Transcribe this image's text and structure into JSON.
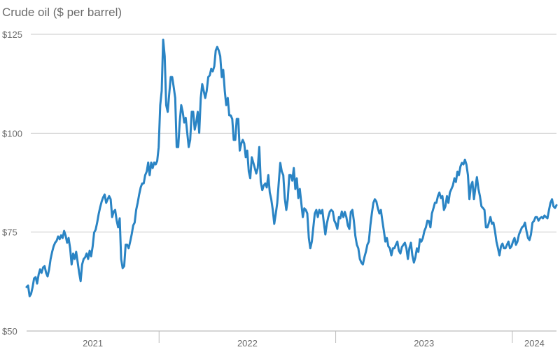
{
  "chart_data": {
    "type": "line",
    "title": "Crude oil ($ per barrel)",
    "xlabel": "",
    "ylabel": "",
    "xlim": [
      2021.25,
      2024.25
    ],
    "ylim": [
      50,
      125
    ],
    "grid": true,
    "y_ticks": [
      {
        "value": 125,
        "label": "$125"
      },
      {
        "value": 100,
        "label": "$100"
      },
      {
        "value": 75,
        "label": "$75"
      },
      {
        "value": 50,
        "label": "$50"
      }
    ],
    "x_ticks": [
      {
        "year": 2021,
        "label": "2021"
      },
      {
        "year": 2022,
        "label": "2022"
      },
      {
        "year": 2023,
        "label": "2023"
      },
      {
        "year": 2024,
        "label": "2024"
      }
    ],
    "color": "#2a84c4",
    "series": [
      {
        "name": "Crude oil",
        "sampling": "evenly spaced from xlim start to xlim end",
        "values": [
          61.1,
          61.5,
          58.8,
          59.4,
          61.1,
          63.3,
          63.6,
          62.0,
          64.3,
          65.6,
          64.7,
          66.1,
          66.4,
          64.7,
          63.8,
          65.6,
          68.2,
          70.0,
          71.4,
          72.3,
          72.8,
          73.9,
          73.2,
          74.2,
          73.5,
          75.3,
          74.1,
          72.3,
          73.5,
          70.9,
          66.8,
          69.6,
          68.2,
          70.0,
          67.5,
          64.7,
          62.6,
          66.8,
          68.2,
          68.6,
          69.6,
          68.2,
          70.3,
          68.9,
          71.4,
          74.9,
          75.6,
          77.4,
          79.5,
          81.3,
          82.7,
          83.8,
          84.5,
          82.4,
          83.3,
          84.1,
          83.3,
          78.8,
          80.2,
          80.6,
          77.9,
          76.2,
          78.5,
          68.2,
          65.9,
          66.4,
          71.8,
          71.8,
          70.9,
          72.6,
          74.4,
          76.7,
          77.4,
          80.6,
          82.4,
          84.5,
          86.3,
          87.3,
          87.3,
          89.4,
          90.3,
          92.6,
          89.4,
          92.6,
          91.2,
          92.6,
          92.1,
          93.0,
          96.5,
          107.1,
          110.7,
          123.6,
          119.5,
          107.1,
          105.4,
          109.8,
          114.2,
          114.2,
          111.6,
          108.9,
          96.5,
          96.5,
          102.7,
          107.1,
          105.4,
          102.7,
          103.9,
          100.1,
          96.5,
          98.3,
          105.4,
          105.4,
          100.9,
          102.7,
          105.4,
          100.1,
          108.9,
          112.4,
          110.7,
          108.9,
          110.7,
          114.2,
          114.6,
          116.3,
          115.6,
          116.9,
          120.9,
          121.8,
          120.9,
          119.5,
          114.2,
          116.0,
          110.7,
          107.1,
          108.9,
          104.5,
          104.5,
          103.6,
          98.3,
          98.3,
          103.6,
          103.6,
          95.6,
          97.4,
          98.3,
          97.4,
          93.9,
          95.6,
          90.3,
          88.6,
          93.9,
          92.6,
          91.2,
          89.8,
          91.2,
          96.5,
          87.7,
          85.6,
          86.8,
          87.3,
          86.3,
          89.4,
          85.0,
          83.3,
          80.6,
          77.1,
          79.7,
          82.4,
          87.7,
          92.5,
          90.3,
          89.4,
          83.6,
          80.6,
          83.3,
          89.4,
          89.4,
          88.0,
          91.2,
          85.9,
          88.6,
          83.6,
          85.9,
          82.4,
          78.8,
          81.0,
          80.6,
          79.7,
          73.5,
          70.9,
          72.6,
          76.2,
          79.7,
          80.6,
          78.8,
          80.6,
          79.7,
          80.6,
          77.4,
          74.4,
          77.1,
          78.8,
          80.2,
          80.6,
          80.2,
          77.9,
          77.1,
          75.8,
          78.8,
          78.5,
          80.2,
          78.8,
          80.1,
          78.8,
          76.7,
          75.8,
          80.1,
          80.6,
          77.9,
          74.1,
          71.8,
          70.9,
          68.2,
          67.3,
          66.8,
          68.6,
          70.0,
          71.8,
          72.6,
          76.7,
          79.7,
          82.4,
          83.3,
          82.7,
          81.0,
          79.7,
          80.6,
          77.9,
          75.3,
          72.6,
          73.5,
          71.4,
          70.9,
          69.1,
          70.9,
          70.9,
          71.8,
          72.6,
          70.3,
          69.6,
          71.2,
          71.8,
          72.3,
          70.9,
          68.2,
          70.9,
          72.3,
          69.1,
          67.3,
          68.6,
          70.9,
          70.0,
          73.2,
          72.6,
          73.5,
          75.3,
          76.2,
          77.9,
          77.8,
          76.2,
          79.7,
          81.0,
          82.4,
          82.4,
          84.1,
          85.0,
          83.6,
          84.1,
          80.6,
          81.5,
          84.1,
          82.4,
          85.0,
          85.9,
          86.8,
          88.6,
          87.7,
          90.3,
          89.4,
          91.6,
          92.5,
          92.1,
          93.3,
          92.1,
          89.4,
          83.3,
          86.8,
          87.7,
          83.3,
          86.3,
          88.9,
          85.9,
          84.1,
          81.5,
          81.1,
          80.6,
          76.2,
          76.2,
          77.4,
          78.8,
          77.1,
          77.4,
          75.3,
          72.6,
          70.9,
          69.1,
          71.4,
          72.1,
          70.9,
          70.9,
          71.8,
          72.6,
          70.9,
          71.4,
          72.6,
          73.5,
          71.8,
          72.6,
          74.4,
          75.3,
          76.2,
          76.5,
          77.4,
          75.3,
          73.5,
          73.0,
          74.4,
          77.4,
          77.8,
          78.8,
          78.8,
          77.9,
          78.5,
          78.8,
          78.5,
          79.2,
          78.8,
          78.5,
          80.6,
          82.4,
          83.3,
          81.5,
          81.1,
          81.8
        ]
      }
    ]
  }
}
